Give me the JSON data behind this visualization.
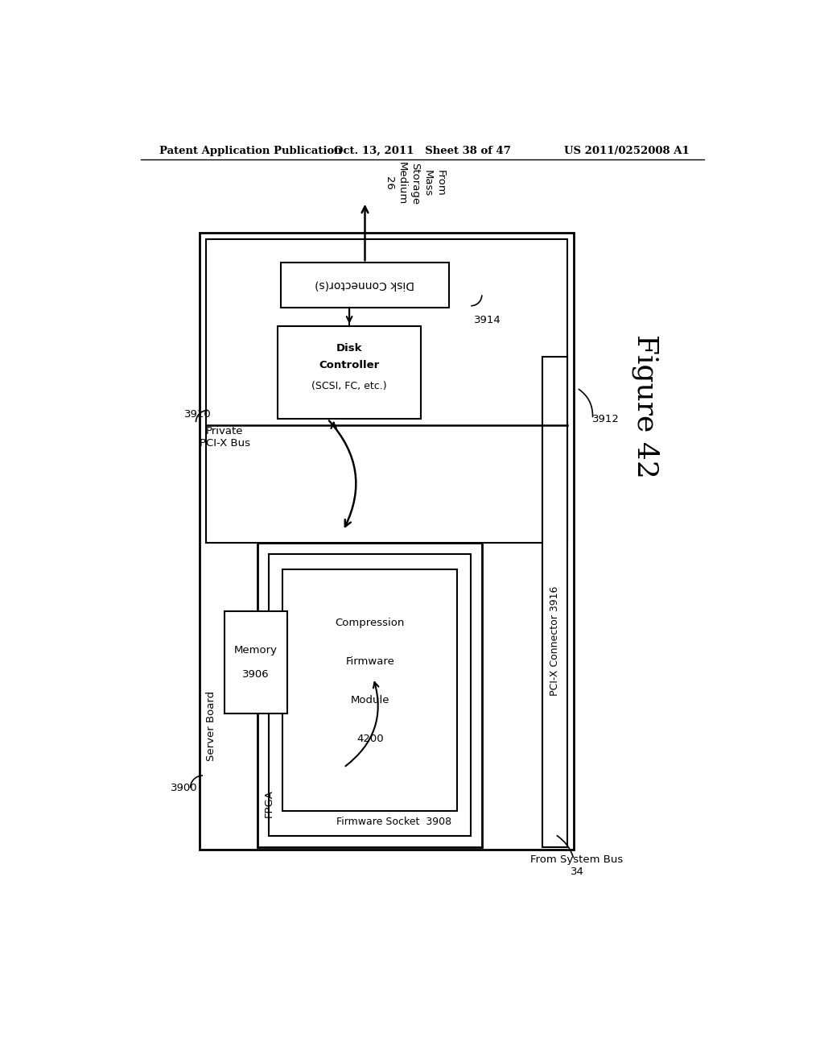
{
  "bg_color": "#ffffff",
  "header_left": "Patent Application Publication",
  "header_mid": "Oct. 13, 2011   Sheet 38 of 47",
  "header_right": "US 2011/0252008 A1",
  "figure_label": "Figure 42"
}
